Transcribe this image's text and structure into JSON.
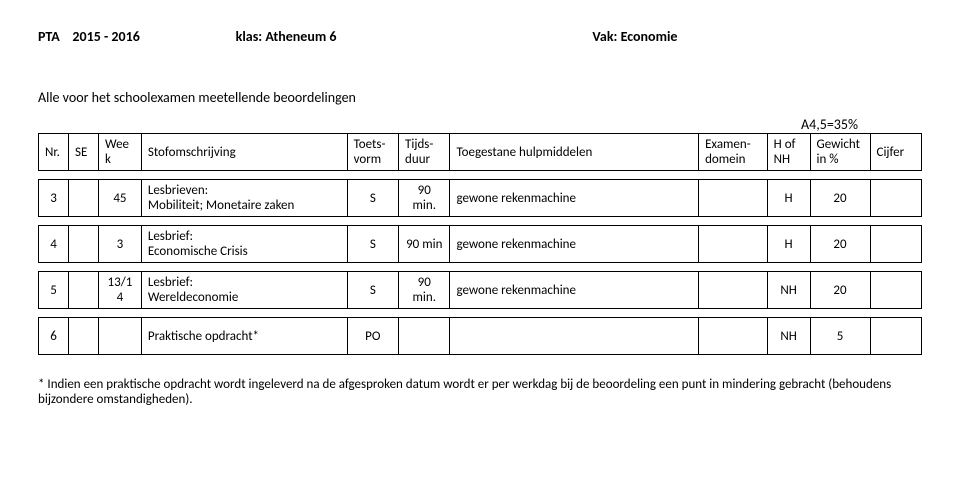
{
  "header": {
    "pta": "PTA",
    "year": "2015 - 2016",
    "klas_label": "klas: Atheneum 6",
    "vak_label": "Vak: Economie"
  },
  "subheader": "Alle voor het schoolexamen meetellende beoordelingen",
  "note_top_right": "A4,5=35%",
  "columns": {
    "nr": "Nr.",
    "se": "SE",
    "week": "Week",
    "stof": "Stofomschrijving",
    "toetsvorm": "Toets-vorm",
    "tijdsduur": "Tijds-duur",
    "hulp": "Toegestane hulpmiddelen",
    "domein": "Examen-domein",
    "hnh": "H of NH",
    "gewicht": "Gewicht in %",
    "cijfer": "Cijfer"
  },
  "rows": [
    {
      "nr": "3",
      "week": "45",
      "stof_line1": "Lesbrieven:",
      "stof_line2": "Mobiliteit; Monetaire zaken",
      "toets": "S",
      "tijd": "90 min.",
      "hulp": "gewone rekenmachine",
      "domein": "",
      "hnh": "H",
      "gew": "20",
      "cijf": ""
    },
    {
      "nr": "4",
      "week": "3",
      "stof_line1": "Lesbrief:",
      "stof_line2": "Economische Crisis",
      "toets": "S",
      "tijd": "90 min",
      "hulp": "gewone rekenmachine",
      "domein": "",
      "hnh": "H",
      "gew": "20",
      "cijf": ""
    },
    {
      "nr": "5",
      "week": "13/14",
      "stof_line1": "Lesbrief:",
      "stof_line2": "Wereldeconomie",
      "toets": "S",
      "tijd": "90 min.",
      "hulp": "gewone rekenmachine",
      "domein": "",
      "hnh": "NH",
      "gew": "20",
      "cijf": ""
    },
    {
      "nr": "6",
      "week": "",
      "stof_line1": "Praktische opdracht*",
      "stof_line2": "",
      "toets": "PO",
      "tijd": "",
      "hulp": "",
      "domein": "",
      "hnh": "NH",
      "gew": "5",
      "cijf": ""
    }
  ],
  "footnote": "* Indien een praktische opdracht wordt ingeleverd na de afgesproken datum wordt er per werkdag bij de beoordeling een punt in mindering gebracht (behoudens bijzondere omstandigheden)."
}
